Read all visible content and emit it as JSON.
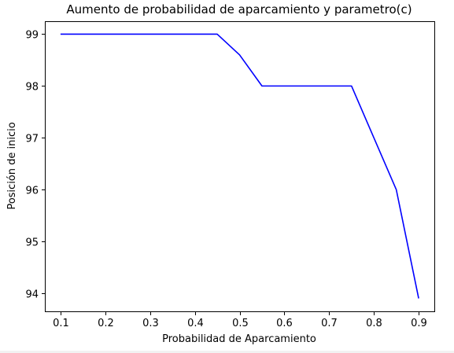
{
  "chart_data": {
    "type": "line",
    "title": "Aumento de probabilidad de aparcamiento y parametro(c)",
    "xlabel": "Probabilidad de Aparcamiento",
    "ylabel": "Posición de inicio",
    "xlim": [
      0.065,
      0.935
    ],
    "ylim": [
      93.65,
      99.25
    ],
    "xticks": [
      0.1,
      0.2,
      0.3,
      0.4,
      0.5,
      0.6,
      0.7,
      0.8,
      0.9
    ],
    "xtick_labels": [
      "0.1",
      "0.2",
      "0.3",
      "0.4",
      "0.5",
      "0.6",
      "0.7",
      "0.8",
      "0.9"
    ],
    "yticks": [
      94,
      95,
      96,
      97,
      98,
      99
    ],
    "ytick_labels": [
      "94",
      "95",
      "96",
      "97",
      "98",
      "99"
    ],
    "grid": false,
    "series": [
      {
        "color": "#0000ff",
        "x": [
          0.1,
          0.15,
          0.2,
          0.25,
          0.3,
          0.35,
          0.4,
          0.45,
          0.5,
          0.55,
          0.6,
          0.65,
          0.7,
          0.75,
          0.8,
          0.85,
          0.9
        ],
        "y": [
          99,
          99,
          99,
          99,
          99,
          99,
          99,
          99,
          98.6,
          98,
          98,
          98,
          98,
          98,
          97.0,
          96,
          93.9
        ]
      }
    ]
  }
}
